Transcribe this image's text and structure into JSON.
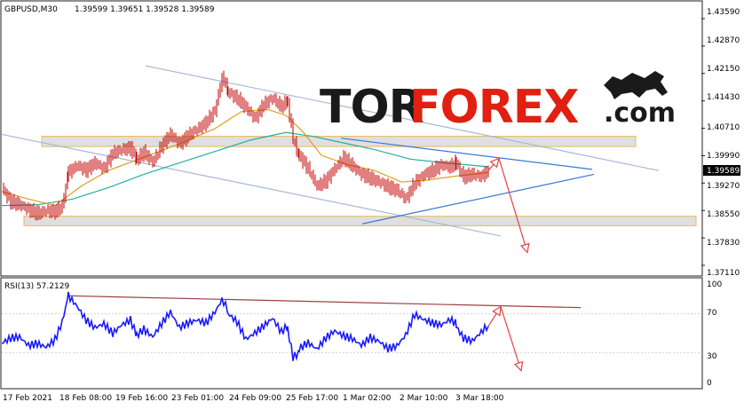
{
  "header": {
    "symbol": "GBPUSD,M30",
    "ohlc": "1.39599 1.39651 1.39528 1.39589"
  },
  "logo": {
    "part1": "TOR",
    "part2": "FOREX",
    "part3": ".com"
  },
  "colors": {
    "candle": "#c00000",
    "ma_fast": "#e0a020",
    "ma_slow": "#20b0a0",
    "channel": "#a8b8d8",
    "triangle": "#3a78d8",
    "arrow": "#e84040",
    "rsi_line": "#1a1aff",
    "rsi_trend": "#a04040",
    "zone_fill": "#dcdcdc",
    "zone_border": "#e8b860",
    "logo_dark": "#1a1a1a",
    "logo_red": "#e02010",
    "price_tag_bg": "#000000",
    "price_tag_text": "#ffffff"
  },
  "chart_data": [
    {
      "type": "candlestick",
      "title": "GBPUSD,M30",
      "ylim": [
        1.369,
        1.438
      ],
      "y_ticks": [
        "1.43590",
        "1.42870",
        "1.42150",
        "1.41430",
        "1.40710",
        "1.39990",
        "1.39270",
        "1.38550",
        "1.37830",
        "1.37110"
      ],
      "current_price": "1.39589",
      "x_tick_labels": [
        "17 Feb 2021",
        "18 Feb 08:00",
        "19 Feb 16:00",
        "23 Feb 01:00",
        "24 Feb 09:00",
        "25 Feb 17:00",
        "1 Mar 02:00",
        "2 Mar 10:00",
        "3 Mar 18:00"
      ],
      "price_path": [
        [
          0,
          1.3915
        ],
        [
          10,
          1.388
        ],
        [
          20,
          1.3875
        ],
        [
          30,
          1.3862
        ],
        [
          40,
          1.3852
        ],
        [
          50,
          1.3858
        ],
        [
          60,
          1.3855
        ],
        [
          68,
          1.3868
        ],
        [
          75,
          1.3955
        ],
        [
          85,
          1.3975
        ],
        [
          95,
          1.3965
        ],
        [
          105,
          1.3985
        ],
        [
          115,
          1.397
        ],
        [
          125,
          1.401
        ],
        [
          135,
          1.4018
        ],
        [
          145,
          1.402
        ],
        [
          152,
          1.399
        ],
        [
          160,
          1.401
        ],
        [
          170,
          1.3985
        ],
        [
          180,
          1.403
        ],
        [
          190,
          1.406
        ],
        [
          200,
          1.4035
        ],
        [
          210,
          1.4055
        ],
        [
          220,
          1.407
        ],
        [
          230,
          1.4085
        ],
        [
          240,
          1.4115
        ],
        [
          248,
          1.42
        ],
        [
          255,
          1.417
        ],
        [
          265,
          1.4155
        ],
        [
          275,
          1.413
        ],
        [
          285,
          1.41
        ],
        [
          295,
          1.4135
        ],
        [
          305,
          1.415
        ],
        [
          315,
          1.4125
        ],
        [
          322,
          1.414
        ],
        [
          328,
          1.405
        ],
        [
          335,
          1.3995
        ],
        [
          345,
          1.396
        ],
        [
          355,
          1.3915
        ],
        [
          365,
          1.393
        ],
        [
          375,
          1.3965
        ],
        [
          385,
          1.3995
        ],
        [
          395,
          1.3975
        ],
        [
          405,
          1.3955
        ],
        [
          415,
          1.3945
        ],
        [
          425,
          1.3935
        ],
        [
          435,
          1.392
        ],
        [
          445,
          1.391
        ],
        [
          455,
          1.3885
        ],
        [
          465,
          1.3925
        ],
        [
          475,
          1.3945
        ],
        [
          485,
          1.3955
        ],
        [
          495,
          1.397
        ],
        [
          505,
          1.3965
        ],
        [
          512,
          1.398
        ],
        [
          520,
          1.3945
        ],
        [
          530,
          1.395
        ],
        [
          540,
          1.3942
        ],
        [
          548,
          1.3959
        ]
      ],
      "ma_fast_path": [
        [
          0,
          1.3905
        ],
        [
          30,
          1.3885
        ],
        [
          60,
          1.3868
        ],
        [
          90,
          1.392
        ],
        [
          120,
          1.396
        ],
        [
          160,
          1.3995
        ],
        [
          200,
          1.403
        ],
        [
          240,
          1.407
        ],
        [
          270,
          1.4115
        ],
        [
          300,
          1.412
        ],
        [
          320,
          1.4105
        ],
        [
          340,
          1.406
        ],
        [
          360,
          1.4
        ],
        [
          390,
          1.3975
        ],
        [
          420,
          1.396
        ],
        [
          450,
          1.393
        ],
        [
          480,
          1.3935
        ],
        [
          510,
          1.3945
        ],
        [
          548,
          1.3955
        ]
      ],
      "ma_slow_path": [
        [
          0,
          1.3868
        ],
        [
          40,
          1.387
        ],
        [
          80,
          1.3885
        ],
        [
          120,
          1.3915
        ],
        [
          160,
          1.395
        ],
        [
          200,
          1.398
        ],
        [
          240,
          1.401
        ],
        [
          280,
          1.404
        ],
        [
          320,
          1.406
        ],
        [
          350,
          1.405
        ],
        [
          380,
          1.4035
        ],
        [
          420,
          1.4015
        ],
        [
          460,
          1.399
        ],
        [
          500,
          1.398
        ],
        [
          548,
          1.397
        ]
      ],
      "zones": [
        {
          "name": "resistance",
          "price_top": 1.405,
          "price_bottom": 1.4023,
          "x_start": 45,
          "x_end": 714
        },
        {
          "name": "support",
          "price_top": 1.384,
          "price_bottom": 1.3815,
          "x_start": 25,
          "x_end": 782
        }
      ],
      "channel_lines": [
        {
          "x1": 162,
          "y1": 1.4235,
          "x2": 740,
          "y2": 1.396
        },
        {
          "x1": 0,
          "y1": 1.4055,
          "x2": 562,
          "y2": 1.3788
        }
      ],
      "triangle_lines": [
        {
          "x1": 382,
          "y1": 1.4045,
          "x2": 665,
          "y2": 1.3963
        },
        {
          "x1": 406,
          "y1": 1.382,
          "x2": 667,
          "y2": 1.395
        }
      ],
      "forecast_arrow": [
        [
          548,
          1.396
        ],
        [
          560,
          1.3992
        ],
        [
          592,
          1.3745
        ]
      ]
    },
    {
      "type": "line",
      "title": "RSI(13) 57.2129",
      "ylim": [
        0,
        100
      ],
      "y_ticks": [
        "100",
        "70",
        "30",
        "0"
      ],
      "rsi_path": [
        [
          0,
          40
        ],
        [
          10,
          46
        ],
        [
          20,
          48
        ],
        [
          30,
          40
        ],
        [
          40,
          42
        ],
        [
          50,
          38
        ],
        [
          60,
          45
        ],
        [
          68,
          62
        ],
        [
          75,
          88
        ],
        [
          85,
          78
        ],
        [
          95,
          65
        ],
        [
          105,
          58
        ],
        [
          115,
          62
        ],
        [
          125,
          52
        ],
        [
          135,
          60
        ],
        [
          145,
          64
        ],
        [
          152,
          48
        ],
        [
          160,
          55
        ],
        [
          170,
          48
        ],
        [
          180,
          62
        ],
        [
          190,
          74
        ],
        [
          200,
          58
        ],
        [
          210,
          62
        ],
        [
          220,
          64
        ],
        [
          230,
          60
        ],
        [
          240,
          70
        ],
        [
          248,
          82
        ],
        [
          255,
          72
        ],
        [
          265,
          64
        ],
        [
          275,
          46
        ],
        [
          285,
          52
        ],
        [
          295,
          58
        ],
        [
          305,
          65
        ],
        [
          315,
          50
        ],
        [
          322,
          56
        ],
        [
          328,
          28
        ],
        [
          335,
          32
        ],
        [
          345,
          38
        ],
        [
          355,
          32
        ],
        [
          365,
          44
        ],
        [
          375,
          52
        ],
        [
          385,
          48
        ],
        [
          395,
          46
        ],
        [
          405,
          40
        ],
        [
          415,
          48
        ],
        [
          425,
          44
        ],
        [
          435,
          36
        ],
        [
          445,
          38
        ],
        [
          455,
          48
        ],
        [
          465,
          68
        ],
        [
          475,
          62
        ],
        [
          485,
          58
        ],
        [
          495,
          56
        ],
        [
          505,
          62
        ],
        [
          512,
          58
        ],
        [
          520,
          46
        ],
        [
          530,
          42
        ],
        [
          540,
          50
        ],
        [
          548,
          57
        ]
      ],
      "trend_line": {
        "x1": 75,
        "y1": 88,
        "x2": 652,
        "y2": 76
      },
      "forecast_arrow": [
        [
          548,
          57
        ],
        [
          562,
          77
        ],
        [
          585,
          12
        ]
      ]
    }
  ]
}
